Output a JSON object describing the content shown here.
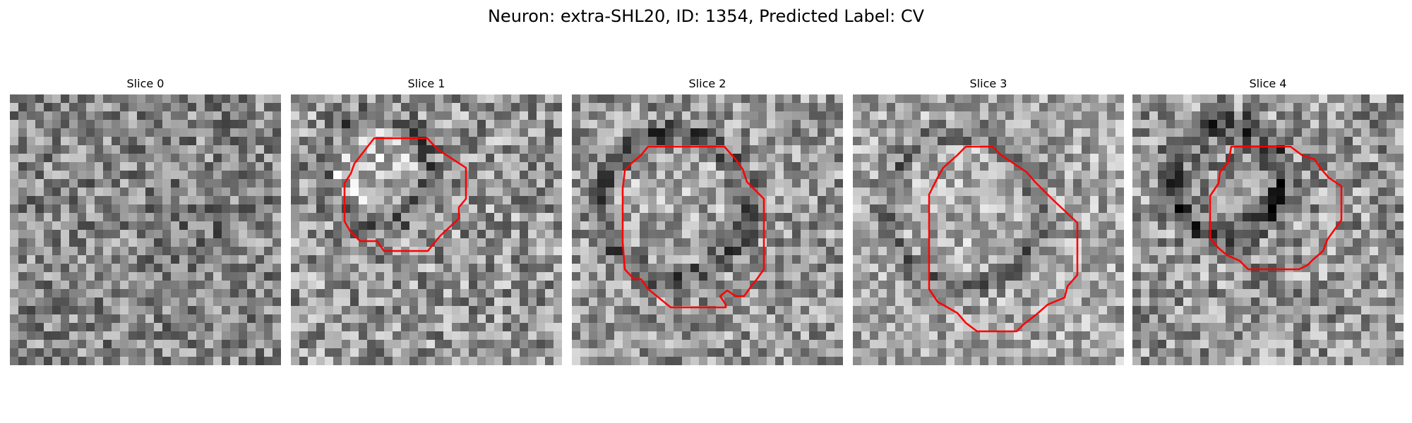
{
  "figure": {
    "title": "Neuron: extra-SHL20, ID: 1354, Predicted Label: CV"
  },
  "panels": [
    {
      "title": "Slice 0",
      "has_contour": false
    },
    {
      "title": "Slice 1",
      "has_contour": true
    },
    {
      "title": "Slice 2",
      "has_contour": true
    },
    {
      "title": "Slice 3",
      "has_contour": true
    },
    {
      "title": "Slice 4",
      "has_contour": true
    }
  ],
  "colors": {
    "contour": "#ff0000"
  }
}
